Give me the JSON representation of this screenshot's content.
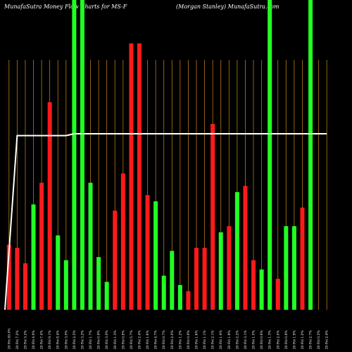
{
  "chart_data": {
    "type": "bar",
    "title": "MunafaSutra  Money Flow  Charts for MS-F",
    "subtitle": "(Morgan  Stanley) MunafaSutra.com",
    "ylim": [
      0,
      100
    ],
    "x": [
      "20 Fri 49.0%",
      "20 Fri 7.2%",
      "20 Fri 3.2%",
      "20 Fri 4.9%",
      "20 Fri 7.4%",
      "20 Fri 9.1%",
      "20 Fri 8.4%",
      "20 Fri 3.0%",
      "20 Fri 2.5%",
      "20 Fri 3.2%",
      "20 Fri 1.7%",
      "20 Fri 0.9%",
      "20 Fri 3.0%",
      "20 Fri 1.3%",
      "20 Fri 0.8%",
      "20 Fri 5.7%",
      "20 Fri 2.4%",
      "20 Fri 1.6%",
      "20 Fri 4.7%",
      "20 Fri 0.7%",
      "20 Fri 2.0%",
      "20 Fri 1.2%",
      "20 Fri 0.9%",
      "20 Fri 1.6%",
      "20 Fri 1.1%",
      "20 Fri 2.1%",
      "20 Fri 1.4%",
      "20 Fri 1.8%",
      "20 Fri 2.2%",
      "20 Fri 3.1%",
      "20 Fri 1.5%",
      "20 Fri 0.6%",
      "20 Fri 1.3%",
      "20 Fri 2.0%",
      "20 Fri 0.8%",
      "20 Fri 1.9%",
      "20 Fri 1.0%",
      "20 Fri 2.7%",
      "20 Fri 0.5%",
      "20 Fri 2.4%"
    ],
    "values": [
      21,
      20,
      15,
      34,
      41,
      67,
      24,
      16,
      100,
      100,
      41,
      17,
      9,
      32,
      44,
      86,
      86,
      37,
      35,
      11,
      19,
      8,
      6,
      20,
      20,
      60,
      25,
      27,
      38,
      40,
      16,
      13,
      100,
      10,
      27,
      27,
      33,
      100,
      0,
      0
    ],
    "directions": [
      "down",
      "down",
      "down",
      "up",
      "down",
      "down",
      "up",
      "up",
      "up",
      "up",
      "up",
      "up",
      "up",
      "down",
      "down",
      "down",
      "down",
      "down",
      "up",
      "up",
      "up",
      "up",
      "down",
      "down",
      "down",
      "down",
      "up",
      "down",
      "up",
      "down",
      "down",
      "up",
      "up",
      "down",
      "up",
      "up",
      "down",
      "up",
      "up",
      "up"
    ],
    "line": [
      0,
      97,
      97,
      97,
      97,
      97,
      97,
      97,
      98,
      98,
      98,
      98,
      98,
      98,
      98,
      98,
      98,
      98,
      98,
      98,
      98,
      98,
      98,
      98,
      98,
      98,
      98,
      98,
      98,
      98,
      98,
      98,
      98,
      98,
      98,
      98,
      98,
      98,
      98,
      98
    ],
    "colors": {
      "up": "#22ff22",
      "down": "#ff1a1a",
      "line": "#ffffff",
      "gridline": "#b87a1a",
      "background": "#000000"
    },
    "grid": true
  }
}
